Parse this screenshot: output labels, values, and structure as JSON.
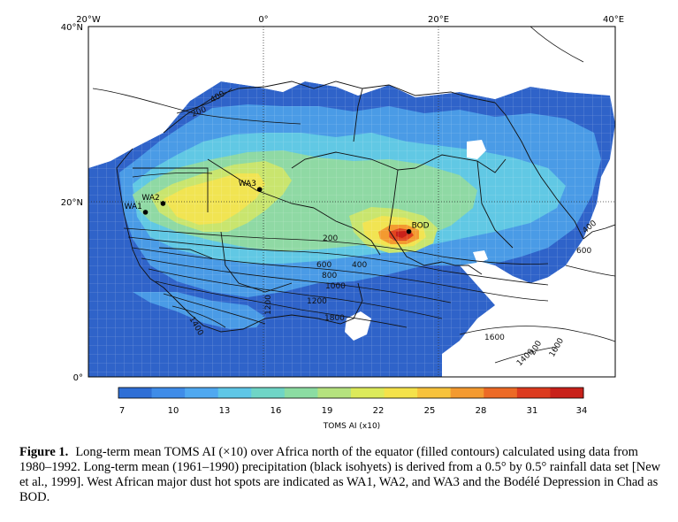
{
  "map": {
    "lon_ticks": [
      "20°W",
      "0°",
      "20°E",
      "40°E"
    ],
    "lat_ticks": [
      "40°N",
      "20°N",
      "0°"
    ],
    "sites": [
      {
        "label": "WA1",
        "lon": -13.5,
        "lat": 18.8
      },
      {
        "label": "WA2",
        "lon": -11.5,
        "lat": 19.8
      },
      {
        "label": "WA3",
        "lon": -0.5,
        "lat": 21.4
      },
      {
        "label": "BOD",
        "lon": 16.5,
        "lat": 16.6
      }
    ],
    "isohyet_labels": [
      "200",
      "400",
      "200",
      "400",
      "600",
      "800",
      "1000",
      "1200",
      "1200",
      "1800",
      "1400",
      "1600",
      "1400",
      "1600",
      "200",
      "400",
      "600"
    ]
  },
  "colorbar": {
    "ticks": [
      "7",
      "10",
      "13",
      "16",
      "19",
      "22",
      "25",
      "28",
      "31",
      "34"
    ],
    "title": "TOMS AI (x10)",
    "colors": [
      "#2f6fd6",
      "#3f8ce8",
      "#4fa8f0",
      "#5ec6e6",
      "#6fd5c6",
      "#8bdca2",
      "#b5e27e",
      "#dcea5a",
      "#f4e24a",
      "#f7c23c",
      "#f39a30",
      "#ec6a26",
      "#dc3b1f",
      "#c8211a"
    ]
  },
  "caption": {
    "label": "Figure 1.",
    "text": "Long-term mean TOMS AI (×10) over Africa north of the equator (filled contours) calculated using data from 1980–1992. Long-term mean (1961–1990) precipitation (black isohyets) is derived from a 0.5° by 0.5° rainfall data set [New et al., 1999]. West African major dust hot spots are indicated as WA1, WA2, and WA3 and the Bodélé Depression in Chad as BOD."
  }
}
